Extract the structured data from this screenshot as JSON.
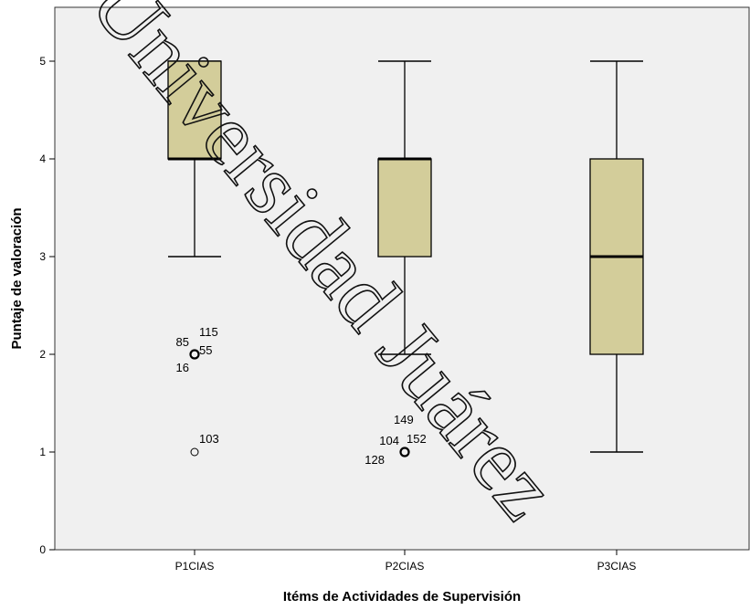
{
  "chart_data": {
    "type": "boxplot",
    "xlabel": "Itéms de Actividades de Supervisión",
    "ylabel": "Puntaje de valoración",
    "ylim": [
      0,
      5.5
    ],
    "yticks": [
      0,
      1,
      2,
      3,
      4,
      5
    ],
    "categories": [
      "P1CIAS",
      "P2CIAS",
      "P3CIAS"
    ],
    "boxes": [
      {
        "category": "P1CIAS",
        "whisker_low": 3,
        "q1": 4,
        "median": 4,
        "q3": 5,
        "whisker_high": 5,
        "outliers": [
          {
            "value": 2,
            "labels": [
              "115",
              "85",
              "55",
              "16"
            ]
          },
          {
            "value": 1,
            "labels": [
              "103"
            ]
          }
        ]
      },
      {
        "category": "P2CIAS",
        "whisker_low": 2,
        "q1": 3,
        "median": 4,
        "q3": 4,
        "whisker_high": 5,
        "outliers": [
          {
            "value": 1,
            "labels": [
              "149",
              "104",
              "152",
              "128"
            ]
          }
        ]
      },
      {
        "category": "P3CIAS",
        "whisker_low": 1,
        "q1": 2,
        "median": 3,
        "q3": 4,
        "whisker_high": 5,
        "outliers": []
      }
    ],
    "box_fill": "#d3cd9a",
    "plot_background": "#f0f0f0",
    "grid": false,
    "legend": "none"
  },
  "watermark": {
    "text": "Universidad Juárez"
  }
}
